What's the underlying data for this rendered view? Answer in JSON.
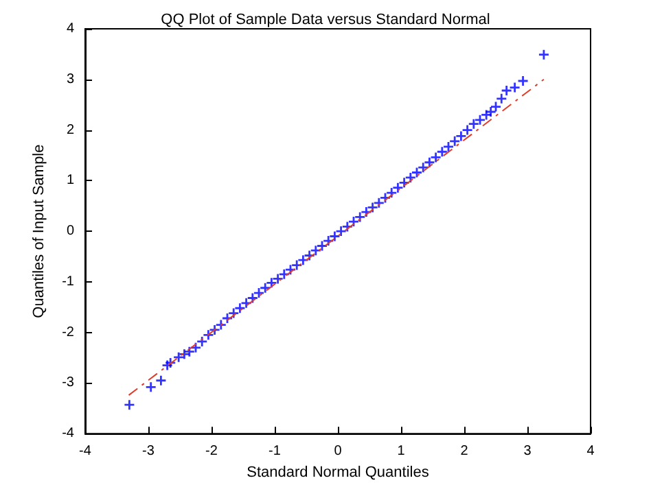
{
  "chart_data": {
    "type": "scatter",
    "title": "QQ Plot of Sample Data versus Standard Normal",
    "xlabel": "Standard Normal Quantiles",
    "ylabel": "Quantiles of Input Sample",
    "xlim": [
      -4,
      4
    ],
    "ylim": [
      -4,
      4
    ],
    "xticks": [
      -4,
      -3,
      -2,
      -1,
      0,
      1,
      2,
      3,
      4
    ],
    "yticks": [
      -4,
      -3,
      -2,
      -1,
      0,
      1,
      2,
      3,
      4
    ],
    "grid": false,
    "marker": "cross",
    "series": [
      {
        "color": "#0000ff",
        "x": [
          -3.3,
          -2.96,
          -2.8,
          -2.7,
          -2.65,
          -2.52,
          -2.43,
          -2.35,
          -2.25,
          -2.15,
          -2.05,
          -1.95,
          -1.85,
          -1.75,
          -1.65,
          -1.55,
          -1.45,
          -1.35,
          -1.25,
          -1.15,
          -1.05,
          -0.95,
          -0.85,
          -0.75,
          -0.65,
          -0.55,
          -0.45,
          -0.35,
          -0.25,
          -0.15,
          -0.05,
          0.05,
          0.15,
          0.25,
          0.35,
          0.45,
          0.55,
          0.65,
          0.75,
          0.85,
          0.95,
          1.05,
          1.15,
          1.25,
          1.35,
          1.45,
          1.55,
          1.65,
          1.75,
          1.85,
          1.95,
          2.05,
          2.15,
          2.25,
          2.35,
          2.42,
          2.5,
          2.59,
          2.67,
          2.8,
          2.93,
          3.26
        ],
        "values": [
          -3.43,
          -3.08,
          -2.95,
          -2.65,
          -2.6,
          -2.49,
          -2.43,
          -2.38,
          -2.3,
          -2.18,
          -2.05,
          -1.95,
          -1.85,
          -1.72,
          -1.62,
          -1.52,
          -1.42,
          -1.32,
          -1.22,
          -1.12,
          -1.02,
          -0.94,
          -0.85,
          -0.76,
          -0.67,
          -0.57,
          -0.48,
          -0.38,
          -0.29,
          -0.19,
          -0.1,
          0.0,
          0.09,
          0.19,
          0.28,
          0.38,
          0.47,
          0.56,
          0.66,
          0.76,
          0.86,
          0.96,
          1.06,
          1.16,
          1.26,
          1.36,
          1.46,
          1.57,
          1.67,
          1.78,
          1.88,
          2.0,
          2.12,
          2.2,
          2.3,
          2.36,
          2.46,
          2.62,
          2.78,
          2.84,
          2.97,
          3.49
        ]
      },
      {
        "type": "line",
        "color": "#e03c2c",
        "line_style": "dashed",
        "marker": "none",
        "x": [
          -3.31,
          3.26
        ],
        "values": [
          -3.24,
          3.0
        ]
      }
    ]
  }
}
